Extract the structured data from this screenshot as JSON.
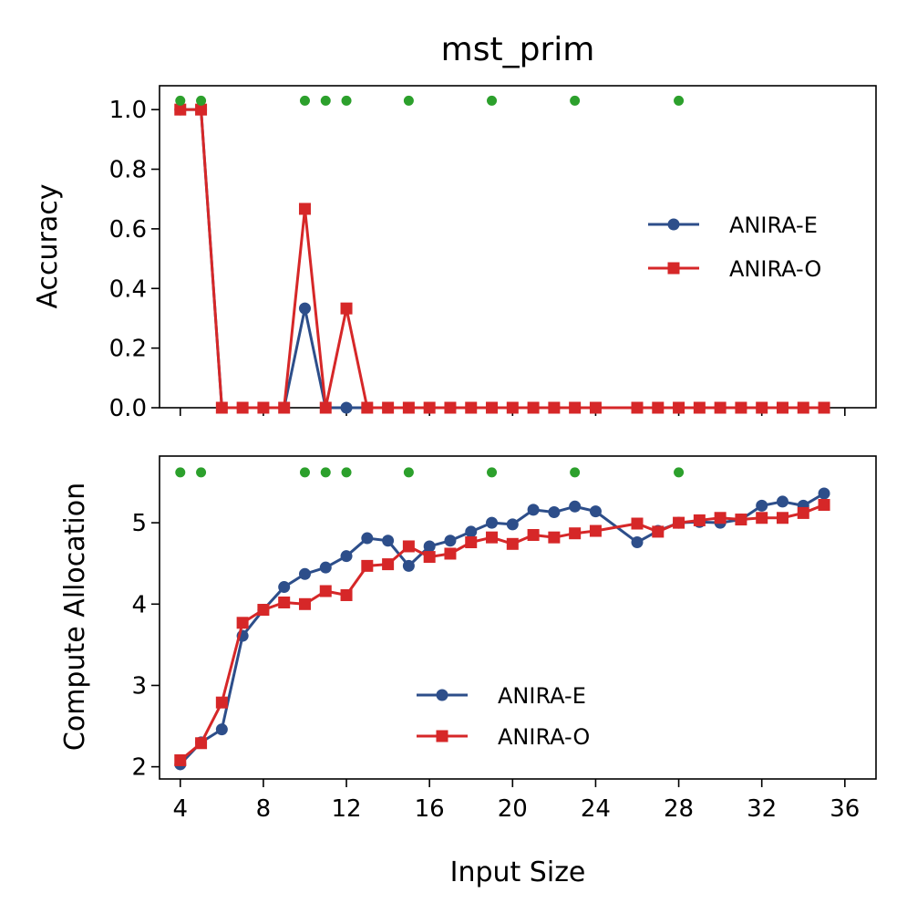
{
  "chart_data": {
    "title": "mst_prim",
    "xlabel": "Input Size",
    "xlim": [
      3.0,
      37.5
    ],
    "xticks": [
      4,
      8,
      12,
      16,
      20,
      24,
      28,
      32,
      36
    ],
    "markers_x": [
      4,
      5,
      10,
      11,
      12,
      15,
      19,
      23,
      28
    ],
    "markers_color": "#2ca02c",
    "panels": [
      {
        "type": "line",
        "ylabel": "Accuracy",
        "ylim": [
          0.0,
          1.08
        ],
        "yticks": [
          0.0,
          0.2,
          0.4,
          0.6,
          0.8,
          1.0
        ],
        "ytick_labels": [
          "0.0",
          "0.2",
          "0.4",
          "0.6",
          "0.8",
          "1.0"
        ],
        "marker_y": 1.03,
        "legend_position": "center-right",
        "series": [
          {
            "name": "ANIRA-E",
            "color": "#2d4e8a",
            "marker": "circle",
            "x": [
              4,
              5,
              6,
              7,
              8,
              9,
              10,
              11,
              12,
              13,
              14,
              15,
              16,
              17,
              18,
              19,
              20,
              21,
              22,
              23,
              24,
              26,
              27,
              28,
              29,
              30,
              31,
              32,
              33,
              34,
              35
            ],
            "values": [
              1.0,
              1.0,
              0,
              0,
              0,
              0,
              0.333,
              0,
              0,
              0,
              0,
              0,
              0,
              0,
              0,
              0,
              0,
              0,
              0,
              0,
              0,
              0,
              0,
              0,
              0,
              0,
              0,
              0,
              0,
              0,
              0
            ]
          },
          {
            "name": "ANIRA-O",
            "color": "#d62728",
            "marker": "square",
            "x": [
              4,
              5,
              6,
              7,
              8,
              9,
              10,
              11,
              12,
              13,
              14,
              15,
              16,
              17,
              18,
              19,
              20,
              21,
              22,
              23,
              24,
              26,
              27,
              28,
              29,
              30,
              31,
              32,
              33,
              34,
              35
            ],
            "values": [
              1.0,
              1.0,
              0,
              0,
              0,
              0,
              0.667,
              0,
              0.333,
              0,
              0,
              0,
              0,
              0,
              0,
              0,
              0,
              0,
              0,
              0,
              0,
              0,
              0,
              0,
              0,
              0,
              0,
              0,
              0,
              0,
              0
            ]
          }
        ]
      },
      {
        "type": "line",
        "ylabel": "Compute Allocation",
        "ylim": [
          1.85,
          5.82
        ],
        "yticks": [
          2,
          3,
          4,
          5
        ],
        "ytick_labels": [
          "2",
          "3",
          "4",
          "5"
        ],
        "marker_y": 5.62,
        "legend_position": "lower-center",
        "series": [
          {
            "name": "ANIRA-E",
            "color": "#2d4e8a",
            "marker": "circle",
            "x": [
              4,
              5,
              6,
              7,
              8,
              9,
              10,
              11,
              12,
              13,
              14,
              15,
              16,
              17,
              18,
              19,
              20,
              21,
              22,
              23,
              24,
              26,
              27,
              28,
              29,
              30,
              31,
              32,
              33,
              34,
              35
            ],
            "values": [
              2.03,
              2.3,
              2.46,
              3.61,
              3.93,
              4.21,
              4.37,
              4.45,
              4.59,
              4.81,
              4.78,
              4.47,
              4.71,
              4.78,
              4.89,
              5.0,
              4.98,
              5.16,
              5.13,
              5.2,
              5.14,
              4.76,
              4.9,
              5.0,
              5.01,
              5.0,
              5.04,
              5.21,
              5.26,
              5.21,
              5.36
            ]
          },
          {
            "name": "ANIRA-O",
            "color": "#d62728",
            "marker": "square",
            "x": [
              4,
              5,
              6,
              7,
              8,
              9,
              10,
              11,
              12,
              13,
              14,
              15,
              16,
              17,
              18,
              19,
              20,
              21,
              22,
              23,
              24,
              26,
              27,
              28,
              29,
              30,
              31,
              32,
              33,
              34,
              35
            ],
            "values": [
              2.08,
              2.29,
              2.79,
              3.77,
              3.93,
              4.02,
              4.0,
              4.16,
              4.11,
              4.47,
              4.49,
              4.71,
              4.58,
              4.62,
              4.76,
              4.82,
              4.74,
              4.85,
              4.82,
              4.87,
              4.9,
              4.99,
              4.89,
              5.0,
              5.03,
              5.06,
              5.04,
              5.06,
              5.06,
              5.12,
              5.22
            ]
          }
        ]
      }
    ]
  }
}
